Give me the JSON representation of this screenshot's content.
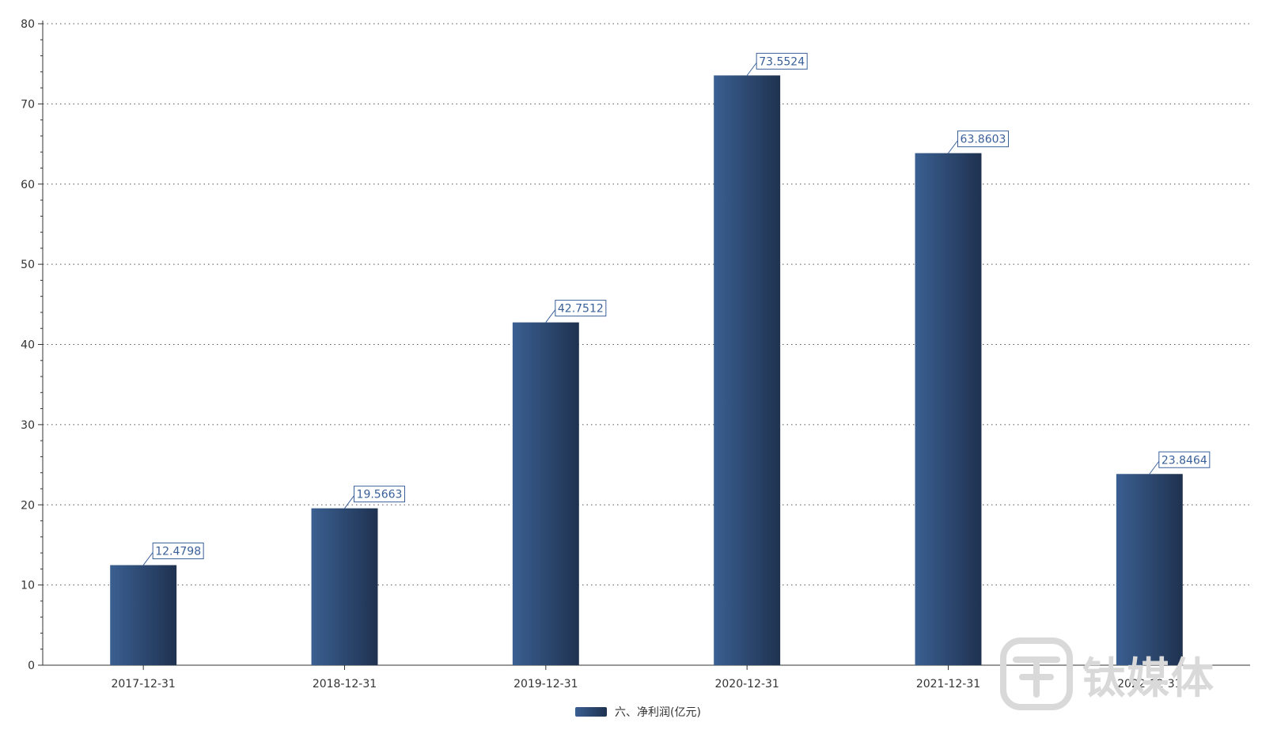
{
  "chart_data": {
    "type": "bar",
    "categories": [
      "2017-12-31",
      "2018-12-31",
      "2019-12-31",
      "2020-12-31",
      "2021-12-31",
      "2022-12-31"
    ],
    "series": [
      {
        "name": "六、净利润(亿元)",
        "values": [
          12.4798,
          19.5663,
          42.7512,
          73.5524,
          63.8603,
          23.8464
        ],
        "value_labels": [
          "12.4798",
          "19.5663",
          "42.7512",
          "73.5524",
          "63.8603",
          "23.8464"
        ]
      }
    ],
    "y_ticks": [
      "0",
      "10",
      "20",
      "30",
      "40",
      "50",
      "60",
      "70",
      "80"
    ],
    "ylim": [
      0,
      80
    ],
    "grid": true,
    "legend_position": "bottom-center",
    "colors": {
      "bar_light": "#3a5f91",
      "bar_dark": "#1f3250",
      "label_color": "#3a6099"
    }
  },
  "watermark": {
    "text": "钛媒体",
    "icon": "tmtpost-logo-icon"
  }
}
